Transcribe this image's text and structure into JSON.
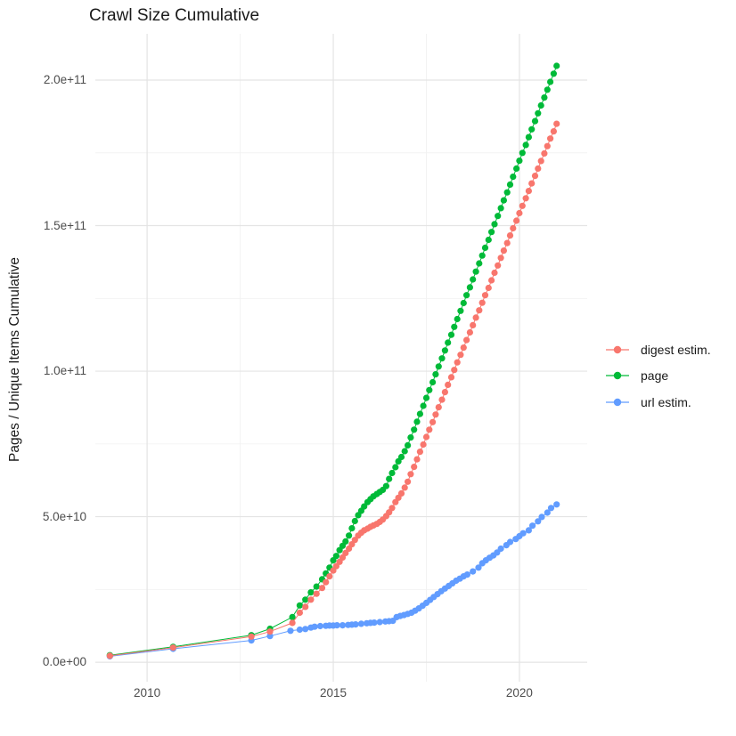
{
  "chart_data": {
    "type": "scatter",
    "title": "Crawl Size Cumulative",
    "xlabel": "",
    "ylabel": "Pages / Unique Items Cumulative",
    "background": "#FFFFFF",
    "grid": true,
    "grid_major_color": "#E4E4E4",
    "grid_minor_color": "#F2F2F2",
    "tick_text_color": "#4D4D4D",
    "legend_position": "right",
    "value_unit": "items, stored in billions (1e9)",
    "xlim": [
      2008.61,
      2021.82
    ],
    "ylim_billions": [
      -6.7,
      215.9
    ],
    "x_major_ticks": [
      {
        "v": 2010,
        "label": "2010"
      },
      {
        "v": 2015,
        "label": "2015"
      },
      {
        "v": 2020,
        "label": "2020"
      }
    ],
    "x_minor": [
      2012.5,
      2017.5
    ],
    "y_major_ticks": [
      {
        "v": 0,
        "label": "0.0e+00"
      },
      {
        "v": 50,
        "label": "5.0e+10"
      },
      {
        "v": 100,
        "label": "1.0e+11"
      },
      {
        "v": 150,
        "label": "1.5e+11"
      },
      {
        "v": 200,
        "label": "2.0e+11"
      }
    ],
    "y_minor": [
      25,
      75,
      125,
      175
    ],
    "series": [
      {
        "name": "digest estim.",
        "color": "#F8766D",
        "points": [
          [
            2009.0,
            2.2
          ],
          [
            2010.7,
            5.0
          ],
          [
            2012.8,
            8.8
          ],
          [
            2013.3,
            10.5
          ],
          [
            2013.9,
            13.5
          ],
          [
            2014.1,
            17.0
          ],
          [
            2014.25,
            19.0
          ],
          [
            2014.4,
            21.5
          ],
          [
            2014.55,
            23.5
          ],
          [
            2014.7,
            25.5
          ],
          [
            2014.8,
            27.5
          ],
          [
            2014.9,
            29.5
          ],
          [
            2015.0,
            31.5
          ],
          [
            2015.08,
            33.0
          ],
          [
            2015.17,
            34.5
          ],
          [
            2015.25,
            36.0
          ],
          [
            2015.33,
            37.5
          ],
          [
            2015.42,
            39.0
          ],
          [
            2015.5,
            40.5
          ],
          [
            2015.58,
            42.0
          ],
          [
            2015.67,
            43.5
          ],
          [
            2015.75,
            44.5
          ],
          [
            2015.83,
            45.3
          ],
          [
            2015.92,
            45.9
          ],
          [
            2016.0,
            46.5
          ],
          [
            2016.08,
            47.0
          ],
          [
            2016.17,
            47.5
          ],
          [
            2016.25,
            48.2
          ],
          [
            2016.33,
            49.0
          ],
          [
            2016.42,
            50.2
          ],
          [
            2016.5,
            51.5
          ],
          [
            2016.58,
            53.0
          ],
          [
            2016.67,
            55.0
          ],
          [
            2016.75,
            56.5
          ],
          [
            2016.83,
            58.0
          ],
          [
            2016.92,
            60.0
          ],
          [
            2017.0,
            62.0
          ],
          [
            2017.08,
            64.6
          ],
          [
            2017.17,
            67.1
          ],
          [
            2017.25,
            69.7
          ],
          [
            2017.33,
            72.3
          ],
          [
            2017.42,
            74.8
          ],
          [
            2017.5,
            77.4
          ],
          [
            2017.58,
            79.9
          ],
          [
            2017.67,
            82.5
          ],
          [
            2017.75,
            85.1
          ],
          [
            2017.83,
            87.6
          ],
          [
            2017.92,
            90.2
          ],
          [
            2018.0,
            92.8
          ],
          [
            2018.08,
            95.3
          ],
          [
            2018.17,
            97.9
          ],
          [
            2018.25,
            100.4
          ],
          [
            2018.33,
            103.0
          ],
          [
            2018.42,
            105.6
          ],
          [
            2018.5,
            108.1
          ],
          [
            2018.58,
            110.7
          ],
          [
            2018.67,
            113.3
          ],
          [
            2018.75,
            115.8
          ],
          [
            2018.83,
            118.4
          ],
          [
            2018.92,
            120.9
          ],
          [
            2019.0,
            123.5
          ],
          [
            2019.08,
            126.1
          ],
          [
            2019.17,
            128.6
          ],
          [
            2019.25,
            131.2
          ],
          [
            2019.33,
            133.8
          ],
          [
            2019.42,
            136.3
          ],
          [
            2019.5,
            138.9
          ],
          [
            2019.58,
            141.4
          ],
          [
            2019.67,
            144.0
          ],
          [
            2019.75,
            146.6
          ],
          [
            2019.83,
            149.1
          ],
          [
            2019.92,
            151.7
          ],
          [
            2020.0,
            154.3
          ],
          [
            2020.08,
            156.8
          ],
          [
            2020.17,
            159.4
          ],
          [
            2020.25,
            161.9
          ],
          [
            2020.33,
            164.5
          ],
          [
            2020.42,
            167.1
          ],
          [
            2020.5,
            169.6
          ],
          [
            2020.58,
            172.2
          ],
          [
            2020.67,
            174.8
          ],
          [
            2020.75,
            177.3
          ],
          [
            2020.83,
            179.9
          ],
          [
            2020.92,
            182.4
          ],
          [
            2021.0,
            185.0
          ]
        ]
      },
      {
        "name": "page",
        "color": "#00BA38",
        "points": [
          [
            2009.0,
            2.4
          ],
          [
            2010.7,
            5.3
          ],
          [
            2012.8,
            9.3
          ],
          [
            2013.3,
            11.5
          ],
          [
            2013.9,
            15.5
          ],
          [
            2014.1,
            19.5
          ],
          [
            2014.25,
            21.5
          ],
          [
            2014.4,
            24.0
          ],
          [
            2014.55,
            26.0
          ],
          [
            2014.7,
            28.5
          ],
          [
            2014.8,
            30.5
          ],
          [
            2014.9,
            32.5
          ],
          [
            2015.0,
            35.0
          ],
          [
            2015.08,
            36.5
          ],
          [
            2015.17,
            38.5
          ],
          [
            2015.25,
            40.0
          ],
          [
            2015.33,
            41.5
          ],
          [
            2015.42,
            43.5
          ],
          [
            2015.5,
            46.0
          ],
          [
            2015.58,
            48.5
          ],
          [
            2015.67,
            50.5
          ],
          [
            2015.75,
            52.0
          ],
          [
            2015.83,
            53.5
          ],
          [
            2015.92,
            55.0
          ],
          [
            2016.0,
            56.0
          ],
          [
            2016.08,
            57.0
          ],
          [
            2016.17,
            57.8
          ],
          [
            2016.25,
            58.5
          ],
          [
            2016.33,
            59.2
          ],
          [
            2016.42,
            60.5
          ],
          [
            2016.5,
            63.0
          ],
          [
            2016.58,
            65.0
          ],
          [
            2016.67,
            67.0
          ],
          [
            2016.75,
            69.0
          ],
          [
            2016.83,
            70.5
          ],
          [
            2016.92,
            72.5
          ],
          [
            2017.0,
            74.5
          ],
          [
            2017.08,
            77.2
          ],
          [
            2017.17,
            79.9
          ],
          [
            2017.25,
            82.6
          ],
          [
            2017.33,
            85.3
          ],
          [
            2017.42,
            88.1
          ],
          [
            2017.5,
            90.8
          ],
          [
            2017.58,
            93.5
          ],
          [
            2017.67,
            96.2
          ],
          [
            2017.75,
            98.9
          ],
          [
            2017.83,
            101.6
          ],
          [
            2017.92,
            104.4
          ],
          [
            2018.0,
            107.1
          ],
          [
            2018.08,
            109.8
          ],
          [
            2018.17,
            112.5
          ],
          [
            2018.25,
            115.2
          ],
          [
            2018.33,
            117.9
          ],
          [
            2018.42,
            120.7
          ],
          [
            2018.5,
            123.4
          ],
          [
            2018.58,
            126.1
          ],
          [
            2018.67,
            128.8
          ],
          [
            2018.75,
            131.5
          ],
          [
            2018.83,
            134.2
          ],
          [
            2018.92,
            137.0
          ],
          [
            2019.0,
            139.7
          ],
          [
            2019.08,
            142.4
          ],
          [
            2019.17,
            145.1
          ],
          [
            2019.25,
            147.8
          ],
          [
            2019.33,
            150.5
          ],
          [
            2019.42,
            153.3
          ],
          [
            2019.5,
            156.0
          ],
          [
            2019.58,
            158.7
          ],
          [
            2019.67,
            161.4
          ],
          [
            2019.75,
            164.1
          ],
          [
            2019.83,
            166.8
          ],
          [
            2019.92,
            169.6
          ],
          [
            2020.0,
            172.3
          ],
          [
            2020.08,
            175.0
          ],
          [
            2020.17,
            177.7
          ],
          [
            2020.25,
            180.4
          ],
          [
            2020.33,
            183.1
          ],
          [
            2020.42,
            185.9
          ],
          [
            2020.5,
            188.6
          ],
          [
            2020.58,
            191.3
          ],
          [
            2020.67,
            194.0
          ],
          [
            2020.75,
            196.7
          ],
          [
            2020.83,
            199.4
          ],
          [
            2020.92,
            202.2
          ],
          [
            2021.0,
            204.9
          ]
        ]
      },
      {
        "name": "url estim.",
        "color": "#619CFF",
        "points": [
          [
            2009.0,
            2.0
          ],
          [
            2010.7,
            4.6
          ],
          [
            2012.8,
            7.5
          ],
          [
            2013.3,
            9.0
          ],
          [
            2013.85,
            10.8
          ],
          [
            2014.1,
            11.2
          ],
          [
            2014.25,
            11.4
          ],
          [
            2014.4,
            11.9
          ],
          [
            2014.5,
            12.2
          ],
          [
            2014.65,
            12.4
          ],
          [
            2014.8,
            12.5
          ],
          [
            2014.9,
            12.6
          ],
          [
            2015.0,
            12.6
          ],
          [
            2015.1,
            12.7
          ],
          [
            2015.25,
            12.7
          ],
          [
            2015.4,
            12.8
          ],
          [
            2015.5,
            12.9
          ],
          [
            2015.6,
            13.0
          ],
          [
            2015.75,
            13.2
          ],
          [
            2015.9,
            13.4
          ],
          [
            2016.0,
            13.5
          ],
          [
            2016.1,
            13.6
          ],
          [
            2016.25,
            13.8
          ],
          [
            2016.4,
            14.0
          ],
          [
            2016.5,
            14.1
          ],
          [
            2016.6,
            14.2
          ],
          [
            2016.7,
            15.5
          ],
          [
            2016.8,
            15.9
          ],
          [
            2016.9,
            16.2
          ],
          [
            2017.0,
            16.6
          ],
          [
            2017.1,
            17.0
          ],
          [
            2017.2,
            17.7
          ],
          [
            2017.3,
            18.5
          ],
          [
            2017.4,
            19.4
          ],
          [
            2017.5,
            20.4
          ],
          [
            2017.6,
            21.4
          ],
          [
            2017.7,
            22.4
          ],
          [
            2017.8,
            23.4
          ],
          [
            2017.9,
            24.4
          ],
          [
            2018.0,
            25.3
          ],
          [
            2018.1,
            26.2
          ],
          [
            2018.2,
            27.1
          ],
          [
            2018.3,
            28.0
          ],
          [
            2018.4,
            28.7
          ],
          [
            2018.5,
            29.5
          ],
          [
            2018.6,
            30.1
          ],
          [
            2018.75,
            31.2
          ],
          [
            2018.9,
            32.5
          ],
          [
            2019.0,
            34.0
          ],
          [
            2019.1,
            35.0
          ],
          [
            2019.2,
            35.9
          ],
          [
            2019.3,
            36.7
          ],
          [
            2019.4,
            37.7
          ],
          [
            2019.5,
            39.0
          ],
          [
            2019.65,
            40.2
          ],
          [
            2019.75,
            41.3
          ],
          [
            2019.9,
            42.3
          ],
          [
            2020.0,
            43.3
          ],
          [
            2020.1,
            44.3
          ],
          [
            2020.25,
            45.3
          ],
          [
            2020.35,
            46.9
          ],
          [
            2020.5,
            48.4
          ],
          [
            2020.6,
            49.9
          ],
          [
            2020.75,
            51.4
          ],
          [
            2020.85,
            53.0
          ],
          [
            2021.0,
            54.2
          ]
        ]
      }
    ]
  }
}
